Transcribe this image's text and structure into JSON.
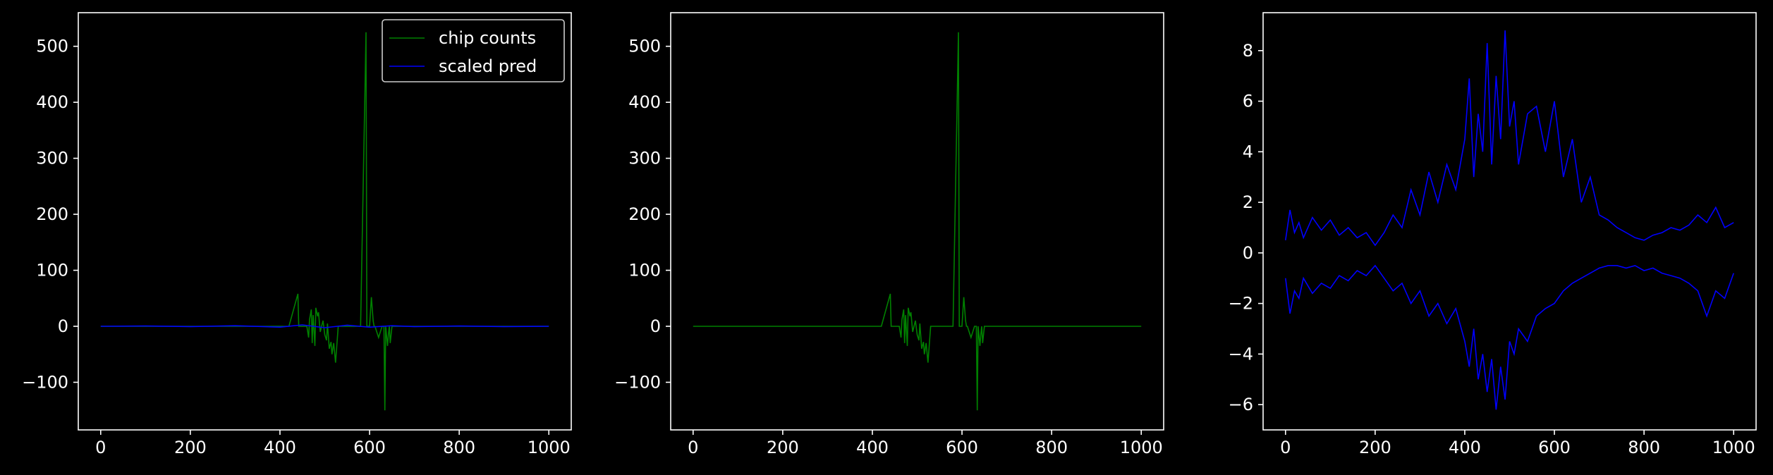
{
  "figure": {
    "background": "#000000",
    "foreground": "#ffffff"
  },
  "chart_data": [
    {
      "type": "line",
      "title": "",
      "xlabel": "",
      "ylabel": "",
      "xlim": [
        -50,
        1050
      ],
      "ylim": [
        -185,
        560
      ],
      "xticks": [
        0,
        200,
        400,
        600,
        800,
        1000
      ],
      "yticks": [
        -100,
        0,
        100,
        200,
        300,
        400,
        500
      ],
      "xtick_labels": [
        "0",
        "200",
        "400",
        "600",
        "800",
        "1000"
      ],
      "ytick_labels": [
        "−100",
        "0",
        "100",
        "200",
        "300",
        "400",
        "500"
      ],
      "grid": false,
      "legend": {
        "location": "upper right",
        "entries": [
          "chip counts",
          "scaled pred"
        ]
      },
      "series": [
        {
          "name": "chip counts",
          "color": "#008000",
          "x": [
            0,
            100,
            200,
            300,
            400,
            420,
            440,
            442,
            446,
            460,
            464,
            466,
            470,
            472,
            474,
            478,
            480,
            484,
            486,
            490,
            496,
            500,
            504,
            506,
            510,
            514,
            516,
            520,
            524,
            530,
            560,
            580,
            592,
            594,
            596,
            600,
            604,
            608,
            610,
            612,
            616,
            620,
            628,
            632,
            634,
            636,
            640,
            642,
            644,
            646,
            650,
            700,
            800,
            900,
            1000
          ],
          "y": [
            0,
            0,
            0,
            0,
            0,
            0,
            58,
            0,
            0,
            0,
            -20,
            12,
            30,
            -30,
            20,
            -35,
            33,
            18,
            25,
            -10,
            10,
            -15,
            -25,
            5,
            -40,
            -28,
            -50,
            -30,
            -65,
            0,
            0,
            0,
            525,
            0,
            0,
            0,
            52,
            10,
            0,
            0,
            -10,
            -20,
            0,
            0,
            -150,
            0,
            -35,
            -15,
            0,
            -30,
            0,
            0,
            0,
            0,
            0
          ]
        },
        {
          "name": "scaled pred",
          "color": "#0000ff",
          "x": [
            0,
            100,
            200,
            300,
            400,
            450,
            500,
            550,
            600,
            650,
            700,
            800,
            900,
            1000
          ],
          "y": [
            0,
            0.5,
            -0.5,
            1,
            -1.5,
            2.5,
            -2.5,
            2,
            -1.5,
            1,
            -0.5,
            0.5,
            -0.5,
            0
          ]
        }
      ]
    },
    {
      "type": "line",
      "title": "",
      "xlabel": "",
      "ylabel": "",
      "xlim": [
        -50,
        1050
      ],
      "ylim": [
        -185,
        560
      ],
      "xticks": [
        0,
        200,
        400,
        600,
        800,
        1000
      ],
      "yticks": [
        -100,
        0,
        100,
        200,
        300,
        400,
        500
      ],
      "xtick_labels": [
        "0",
        "200",
        "400",
        "600",
        "800",
        "1000"
      ],
      "ytick_labels": [
        "−100",
        "0",
        "100",
        "200",
        "300",
        "400",
        "500"
      ],
      "grid": false,
      "series": [
        {
          "color": "#008000",
          "x": [
            0,
            100,
            200,
            300,
            400,
            420,
            440,
            442,
            446,
            460,
            464,
            466,
            470,
            472,
            474,
            478,
            480,
            484,
            486,
            490,
            496,
            500,
            504,
            506,
            510,
            514,
            516,
            520,
            524,
            530,
            560,
            580,
            592,
            594,
            596,
            600,
            604,
            608,
            610,
            612,
            616,
            620,
            628,
            632,
            634,
            636,
            640,
            642,
            644,
            646,
            650,
            700,
            800,
            900,
            1000
          ],
          "y": [
            0,
            0,
            0,
            0,
            0,
            0,
            58,
            0,
            0,
            0,
            -20,
            12,
            30,
            -30,
            20,
            -35,
            33,
            18,
            25,
            -10,
            10,
            -15,
            -25,
            5,
            -40,
            -28,
            -50,
            -30,
            -65,
            0,
            0,
            0,
            525,
            0,
            0,
            0,
            52,
            10,
            0,
            0,
            -10,
            -20,
            0,
            0,
            -150,
            0,
            -35,
            -15,
            0,
            -30,
            0,
            0,
            0,
            0,
            0
          ]
        }
      ]
    },
    {
      "type": "line",
      "title": "",
      "xlabel": "",
      "ylabel": "",
      "xlim": [
        -50,
        1050
      ],
      "ylim": [
        -7,
        9.5
      ],
      "xticks": [
        0,
        200,
        400,
        600,
        800,
        1000
      ],
      "yticks": [
        -6,
        -4,
        -2,
        0,
        2,
        4,
        6,
        8
      ],
      "xtick_labels": [
        "0",
        "200",
        "400",
        "600",
        "800",
        "1000"
      ],
      "ytick_labels": [
        "−6",
        "−4",
        "−2",
        "0",
        "2",
        "4",
        "6",
        "8"
      ],
      "grid": false,
      "series": [
        {
          "color": "#0000ff",
          "x": [
            0,
            10,
            20,
            30,
            40,
            60,
            80,
            100,
            120,
            140,
            160,
            180,
            200,
            220,
            240,
            260,
            280,
            300,
            320,
            340,
            360,
            380,
            400,
            410,
            420,
            430,
            440,
            450,
            460,
            470,
            480,
            490,
            500,
            510,
            520,
            540,
            560,
            580,
            600,
            620,
            640,
            660,
            680,
            700,
            720,
            740,
            760,
            780,
            800,
            820,
            840,
            860,
            880,
            900,
            920,
            940,
            960,
            980,
            1000
          ],
          "y": [
            0.5,
            1.7,
            0.8,
            1.2,
            0.6,
            1.4,
            0.9,
            1.3,
            0.7,
            1.0,
            0.6,
            0.8,
            0.3,
            0.8,
            1.5,
            1.0,
            2.5,
            1.5,
            3.2,
            2.0,
            3.5,
            2.5,
            4.5,
            6.9,
            3.0,
            5.5,
            4.0,
            8.3,
            3.5,
            7.0,
            4.5,
            8.8,
            5.0,
            6.0,
            3.5,
            5.5,
            5.8,
            4.0,
            6.0,
            3.0,
            4.5,
            2.0,
            3.0,
            1.5,
            1.3,
            1.0,
            0.8,
            0.6,
            0.5,
            0.7,
            0.8,
            1.0,
            0.9,
            1.1,
            1.5,
            1.2,
            1.8,
            1.0,
            1.2
          ]
        },
        {
          "color": "#0000ff",
          "x": [
            0,
            10,
            20,
            30,
            40,
            60,
            80,
            100,
            120,
            140,
            160,
            180,
            200,
            220,
            240,
            260,
            280,
            300,
            320,
            340,
            360,
            380,
            400,
            410,
            420,
            430,
            440,
            450,
            460,
            470,
            480,
            490,
            500,
            510,
            520,
            540,
            560,
            580,
            600,
            620,
            640,
            660,
            680,
            700,
            720,
            740,
            760,
            780,
            800,
            820,
            840,
            860,
            880,
            900,
            920,
            940,
            960,
            980,
            1000
          ],
          "y": [
            -1.0,
            -2.4,
            -1.5,
            -1.8,
            -1.0,
            -1.6,
            -1.2,
            -1.4,
            -0.9,
            -1.1,
            -0.7,
            -0.9,
            -0.5,
            -1.0,
            -1.5,
            -1.2,
            -2.0,
            -1.5,
            -2.5,
            -2.0,
            -2.8,
            -2.2,
            -3.5,
            -4.5,
            -3.0,
            -5.0,
            -4.0,
            -5.5,
            -4.2,
            -6.2,
            -4.5,
            -5.8,
            -3.5,
            -4.0,
            -3.0,
            -3.5,
            -2.5,
            -2.2,
            -2.0,
            -1.5,
            -1.2,
            -1.0,
            -0.8,
            -0.6,
            -0.5,
            -0.5,
            -0.6,
            -0.5,
            -0.7,
            -0.6,
            -0.8,
            -0.9,
            -1.0,
            -1.2,
            -1.5,
            -2.5,
            -1.5,
            -1.8,
            -0.8
          ]
        }
      ]
    }
  ]
}
